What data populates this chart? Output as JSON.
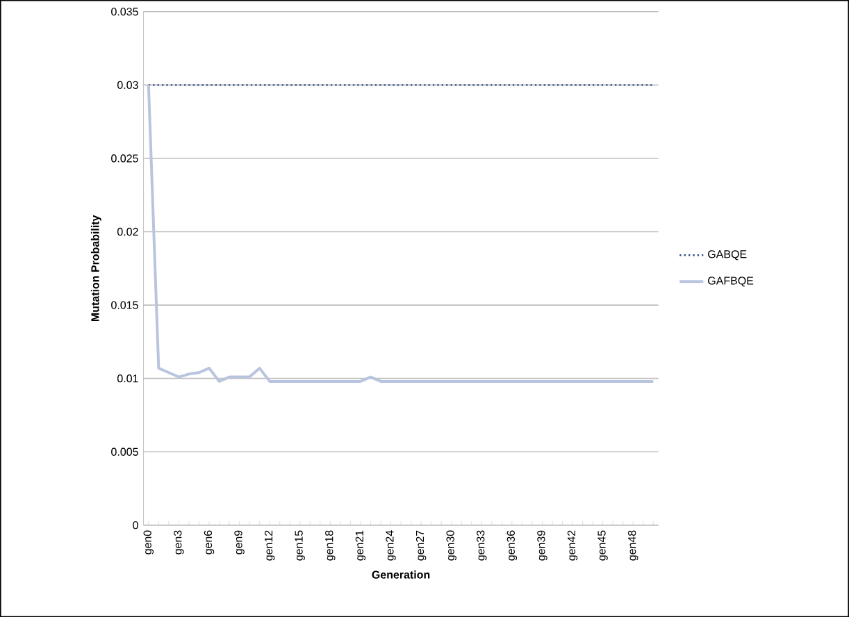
{
  "chart_data": {
    "type": "line",
    "xlabel": "Generation",
    "ylabel": "Mutation Probability",
    "categories": [
      "gen0",
      null,
      null,
      "gen3",
      null,
      null,
      "gen6",
      null,
      null,
      "gen9",
      null,
      null,
      "gen12",
      null,
      null,
      "gen15",
      null,
      null,
      "gen18",
      null,
      null,
      "gen21",
      null,
      null,
      "gen24",
      null,
      null,
      "gen27",
      null,
      null,
      "gen30",
      null,
      null,
      "gen33",
      null,
      null,
      "gen36",
      null,
      null,
      "gen39",
      null,
      null,
      "gen42",
      null,
      null,
      "gen45",
      null,
      null,
      "gen48",
      null,
      null
    ],
    "series": [
      {
        "name": "GABQE",
        "color": "#2e4a86",
        "line_style": "dotted",
        "values": [
          0.03,
          0.03,
          0.03,
          0.03,
          0.03,
          0.03,
          0.03,
          0.03,
          0.03,
          0.03,
          0.03,
          0.03,
          0.03,
          0.03,
          0.03,
          0.03,
          0.03,
          0.03,
          0.03,
          0.03,
          0.03,
          0.03,
          0.03,
          0.03,
          0.03,
          0.03,
          0.03,
          0.03,
          0.03,
          0.03,
          0.03,
          0.03,
          0.03,
          0.03,
          0.03,
          0.03,
          0.03,
          0.03,
          0.03,
          0.03,
          0.03,
          0.03,
          0.03,
          0.03,
          0.03,
          0.03,
          0.03,
          0.03,
          0.03,
          0.03,
          0.03
        ]
      },
      {
        "name": "GAFBQE",
        "color": "#b9c5df",
        "line_style": "solid",
        "values": [
          0.03,
          0.0107,
          0.0104,
          0.0101,
          0.0103,
          0.0104,
          0.0107,
          0.0098,
          0.0101,
          0.0101,
          0.0101,
          0.0107,
          0.0098,
          0.0098,
          0.0098,
          0.0098,
          0.0098,
          0.0098,
          0.0098,
          0.0098,
          0.0098,
          0.0098,
          0.0101,
          0.0098,
          0.0098,
          0.0098,
          0.0098,
          0.0098,
          0.0098,
          0.0098,
          0.0098,
          0.0098,
          0.0098,
          0.0098,
          0.0098,
          0.0098,
          0.0098,
          0.0098,
          0.0098,
          0.0098,
          0.0098,
          0.0098,
          0.0098,
          0.0098,
          0.0098,
          0.0098,
          0.0098,
          0.0098,
          0.0098,
          0.0098,
          0.0098
        ]
      }
    ],
    "ylim": [
      0,
      0.035
    ],
    "yticks": [
      0,
      0.005,
      0.01,
      0.015,
      0.02,
      0.025,
      0.03,
      0.035
    ],
    "grid": "y",
    "legend": "right",
    "marker": "none"
  }
}
